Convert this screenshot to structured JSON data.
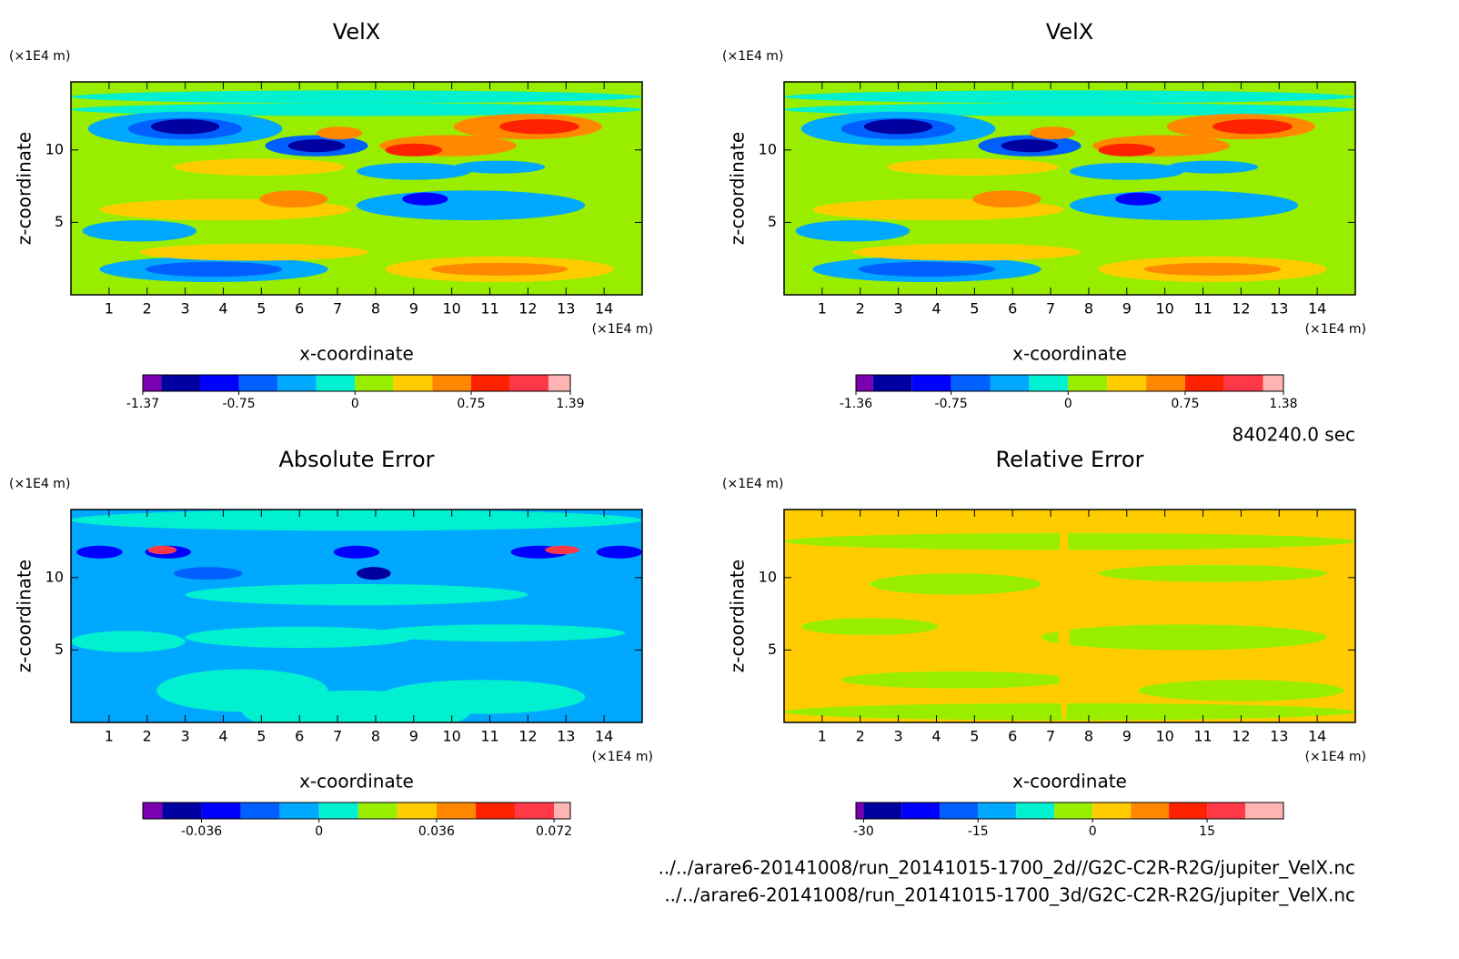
{
  "chart_data": [
    {
      "type": "contour",
      "title": "VelX",
      "xlabel": "x-coordinate",
      "ylabel": "z-coordinate",
      "axis_unit": "(×1E4 m)",
      "xlim": [
        0,
        15
      ],
      "ylim": [
        0,
        14.7
      ],
      "xticks": [
        1,
        2,
        3,
        4,
        5,
        6,
        7,
        8,
        9,
        10,
        11,
        12,
        13,
        14
      ],
      "yticks": [
        5,
        10
      ],
      "colorbar": {
        "levels": [
          -1.37,
          -1.25,
          -1,
          -0.75,
          -0.5,
          -0.25,
          0,
          0.25,
          0.5,
          0.75,
          1,
          1.25,
          1.39
        ],
        "colors": [
          "#7a00b0",
          "#0000a0",
          "#0000ff",
          "#0060ff",
          "#00a8ff",
          "#00f0d0",
          "#99ee00",
          "#ffcc00",
          "#ff8800",
          "#ff2200",
          "#ff3848",
          "#ffb4b4"
        ],
        "ticks": [
          -1.37,
          -0.75,
          0,
          0.75,
          1.39
        ]
      }
    },
    {
      "type": "contour",
      "title": "VelX",
      "xlabel": "x-coordinate",
      "ylabel": "z-coordinate",
      "axis_unit": "(×1E4 m)",
      "xlim": [
        0,
        15
      ],
      "ylim": [
        0,
        14.7
      ],
      "xticks": [
        1,
        2,
        3,
        4,
        5,
        6,
        7,
        8,
        9,
        10,
        11,
        12,
        13,
        14
      ],
      "yticks": [
        5,
        10
      ],
      "colorbar": {
        "levels": [
          -1.36,
          -1.25,
          -1,
          -0.75,
          -0.5,
          -0.25,
          0,
          0.25,
          0.5,
          0.75,
          1,
          1.25,
          1.38
        ],
        "colors": [
          "#7a00b0",
          "#0000a0",
          "#0000ff",
          "#0060ff",
          "#00a8ff",
          "#00f0d0",
          "#99ee00",
          "#ffcc00",
          "#ff8800",
          "#ff2200",
          "#ff3848",
          "#ffb4b4"
        ],
        "ticks": [
          -1.36,
          -0.75,
          0,
          0.75,
          1.38
        ]
      }
    },
    {
      "type": "contour",
      "title": "Absolute Error",
      "xlabel": "x-coordinate",
      "ylabel": "z-coordinate",
      "axis_unit": "(×1E4 m)",
      "xlim": [
        0,
        15
      ],
      "ylim": [
        0,
        14.7
      ],
      "xticks": [
        1,
        2,
        3,
        4,
        5,
        6,
        7,
        8,
        9,
        10,
        11,
        12,
        13,
        14
      ],
      "yticks": [
        5,
        10
      ],
      "colorbar": {
        "levels": [
          -0.054,
          -0.048,
          -0.036,
          -0.024,
          -0.012,
          0,
          0.012,
          0.024,
          0.036,
          0.048,
          0.06,
          0.072,
          0.077
        ],
        "colors": [
          "#7a00b0",
          "#0000a0",
          "#0000ff",
          "#0060ff",
          "#00a8ff",
          "#00f0d0",
          "#99ee00",
          "#ffcc00",
          "#ff8800",
          "#ff2200",
          "#ff3848",
          "#ffb4b4"
        ],
        "ticks": [
          -0.036,
          0,
          0.036,
          0.072
        ]
      }
    },
    {
      "type": "contour",
      "title": "Relative Error",
      "xlabel": "x-coordinate",
      "ylabel": "z-coordinate",
      "axis_unit": "(×1E4 m)",
      "xlim": [
        0,
        15
      ],
      "ylim": [
        0,
        14.7
      ],
      "xticks": [
        1,
        2,
        3,
        4,
        5,
        6,
        7,
        8,
        9,
        10,
        11,
        12,
        13,
        14
      ],
      "yticks": [
        5,
        10
      ],
      "colorbar": {
        "levels": [
          -31,
          -30,
          -25,
          -20,
          -15,
          -10,
          -5,
          0,
          5,
          10,
          15,
          20,
          25
        ],
        "colors": [
          "#7a00b0",
          "#0000a0",
          "#0000ff",
          "#0060ff",
          "#00a8ff",
          "#00f0d0",
          "#99ee00",
          "#ffcc00",
          "#ff8800",
          "#ff2200",
          "#ff3848",
          "#ffb4b4"
        ],
        "ticks": [
          -30,
          -15,
          0,
          15
        ]
      }
    }
  ],
  "annotations": {
    "time": "840240.0 sec",
    "files": [
      "../../arare6-20141008/run_20141015-1700_2d//G2C-C2R-R2G/jupiter_VelX.nc",
      "../../arare6-20141008/run_20141015-1700_3d/G2C-C2R-R2G/jupiter_VelX.nc"
    ]
  }
}
